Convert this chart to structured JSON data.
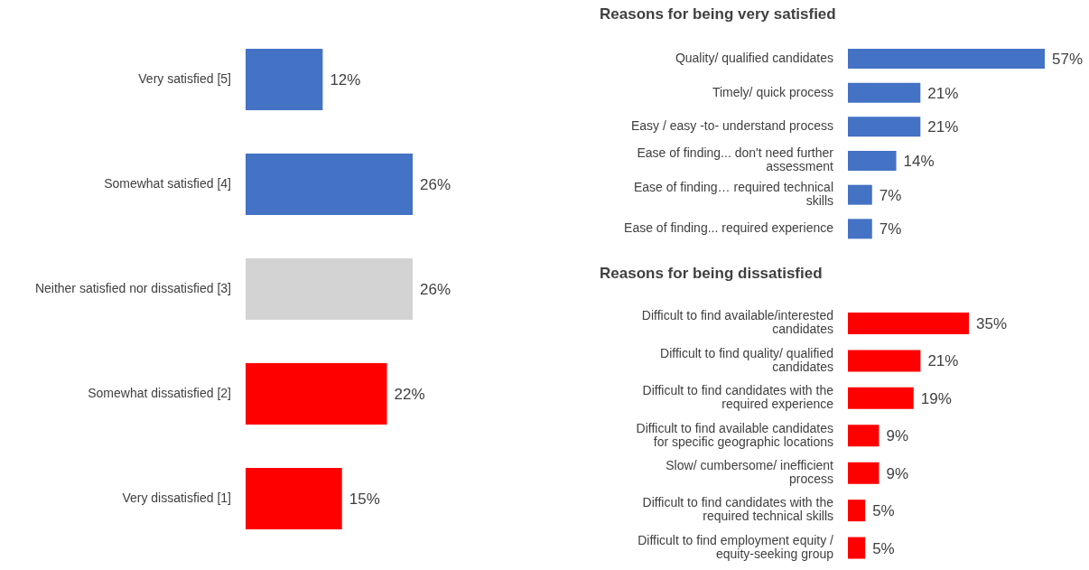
{
  "chart_data": [
    {
      "type": "bar",
      "orientation": "horizontal",
      "categories": [
        "Very satisfied [5]",
        "Somewhat satisfied [4]",
        "Neither satisfied nor dissatisfied [3]",
        "Somewhat dissatisfied [2]",
        "Very dissatisfied [1]"
      ],
      "values": [
        12,
        26,
        26,
        22,
        15
      ],
      "colors": [
        "#4472c4",
        "#4472c4",
        "#d3d3d3",
        "#ff0000",
        "#ff0000"
      ],
      "value_labels": [
        "12%",
        "26%",
        "26%",
        "22%",
        "15%"
      ]
    },
    {
      "type": "bar",
      "orientation": "horizontal",
      "title": "Reasons for being very satisfied",
      "categories": [
        "Quality/ qualified candidates",
        "Timely/ quick process",
        "Easy / easy -to- understand process",
        "Ease of finding... don't need further\nassessment",
        "Ease of finding… required technical\nskills",
        "Ease of finding... required experience"
      ],
      "values": [
        57,
        21,
        21,
        14,
        7,
        7
      ],
      "colors": [
        "#4472c4",
        "#4472c4",
        "#4472c4",
        "#4472c4",
        "#4472c4",
        "#4472c4"
      ],
      "value_labels": [
        "57%",
        "21%",
        "21%",
        "14%",
        "7%",
        "7%"
      ]
    },
    {
      "type": "bar",
      "orientation": "horizontal",
      "title": "Reasons for being dissatisfied",
      "categories": [
        "Difficult to find available/interested\ncandidates",
        "Difficult to find quality/ qualified\ncandidates",
        "Difficult to find candidates with the\nrequired experience",
        "Difficult to find available candidates\nfor specific geographic locations",
        "Slow/ cumbersome/ inefficient\nprocess",
        "Difficult to find candidates with the\nrequired technical skills",
        "Difficult to find employment equity /\nequity-seeking group"
      ],
      "values": [
        35,
        21,
        19,
        9,
        9,
        5,
        5
      ],
      "colors": [
        "#ff0000",
        "#ff0000",
        "#ff0000",
        "#ff0000",
        "#ff0000",
        "#ff0000",
        "#ff0000"
      ],
      "value_labels": [
        "35%",
        "21%",
        "19%",
        "9%",
        "9%",
        "5%",
        "5%"
      ]
    }
  ]
}
